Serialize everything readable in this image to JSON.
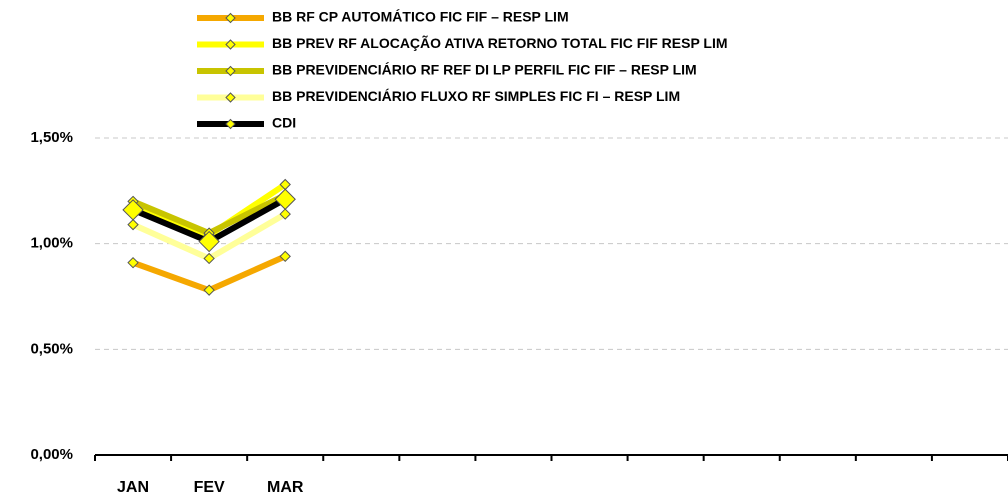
{
  "chart_data": {
    "type": "line",
    "categories": [
      "JAN",
      "FEV",
      "MAR",
      null,
      null,
      null,
      null,
      null,
      null,
      null,
      null,
      null
    ],
    "series": [
      {
        "name": "BB RF CP AUTOMÁTICO FIC FIF – RESP LIM",
        "color": "#F5A800",
        "marker_size": 5,
        "values": [
          0.91,
          0.78,
          0.94,
          null,
          null,
          null,
          null,
          null,
          null,
          null,
          null,
          null
        ]
      },
      {
        "name": "BB PREV RF ALOCAÇÃO ATIVA RETORNO TOTAL FIC FIF RESP LIM",
        "color": "#FFFF00",
        "marker_size": 5,
        "values": [
          1.18,
          1.04,
          1.28,
          null,
          null,
          null,
          null,
          null,
          null,
          null,
          null,
          null
        ]
      },
      {
        "name": "BB PREVIDENCIÁRIO RF REF DI LP PERFIL FIC FIF – RESP LIM",
        "color": "#C8C400",
        "marker_size": 5,
        "values": [
          1.2,
          1.05,
          1.23,
          null,
          null,
          null,
          null,
          null,
          null,
          null,
          null,
          null
        ]
      },
      {
        "name": "BB PREVIDENCIÁRIO FLUXO RF SIMPLES FIC FI – RESP LIM",
        "color": "#FFFF99",
        "marker_size": 5,
        "values": [
          1.09,
          0.93,
          1.14,
          null,
          null,
          null,
          null,
          null,
          null,
          null,
          null,
          null
        ]
      },
      {
        "name": "CDI",
        "color": "#000000",
        "marker_size": 10,
        "values": [
          1.16,
          1.01,
          1.21,
          null,
          null,
          null,
          null,
          null,
          null,
          null,
          null,
          null
        ]
      }
    ],
    "ylim": [
      0,
      1.5
    ],
    "yticks": [
      {
        "value": 0,
        "label": "0,00%"
      },
      {
        "value": 0.5,
        "label": "0,50%"
      },
      {
        "value": 1,
        "label": "1,00%"
      },
      {
        "value": 1.5,
        "label": "1,50%"
      }
    ],
    "grid": true,
    "legend": "top"
  }
}
